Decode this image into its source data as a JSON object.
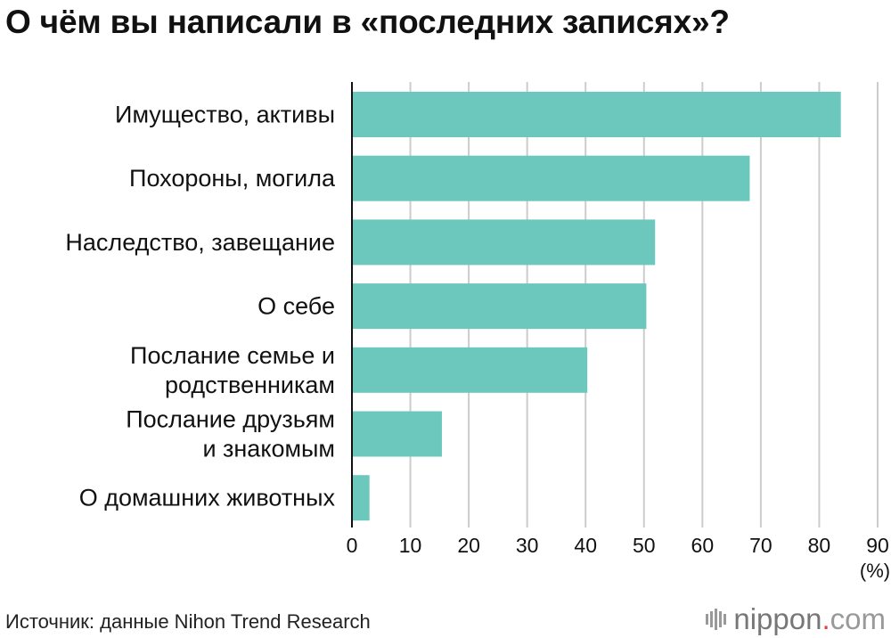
{
  "header": {
    "title": "О чём вы написали в «последних записях»?"
  },
  "chart_data": {
    "type": "bar",
    "orientation": "horizontal",
    "title": "О чём вы написали в «последних записях»?",
    "categories": [
      [
        "Имущество, активы"
      ],
      [
        "Похороны, могила"
      ],
      [
        "Наследство, завещание"
      ],
      [
        "О себе"
      ],
      [
        "Послание семье и",
        "родственникам"
      ],
      [
        "Послание друзьям",
        "и знакомым"
      ],
      [
        "О домашних животных"
      ]
    ],
    "values": [
      83.7,
      68.1,
      51.9,
      50.4,
      40.3,
      15.4,
      3.0
    ],
    "xlim": [
      0,
      90
    ],
    "xticks": [
      0,
      10,
      20,
      30,
      40,
      50,
      60,
      70,
      80,
      90
    ],
    "unit_label": "(%)",
    "grid": true,
    "colors": {
      "bar": "#6cc8bc",
      "grid": "#cccccc",
      "axis": "#111111"
    }
  },
  "footer": {
    "source": "Источник: данные Nihon Trend Research",
    "brand_name": "nippon",
    "brand_dot": ".",
    "brand_tld": "com"
  }
}
